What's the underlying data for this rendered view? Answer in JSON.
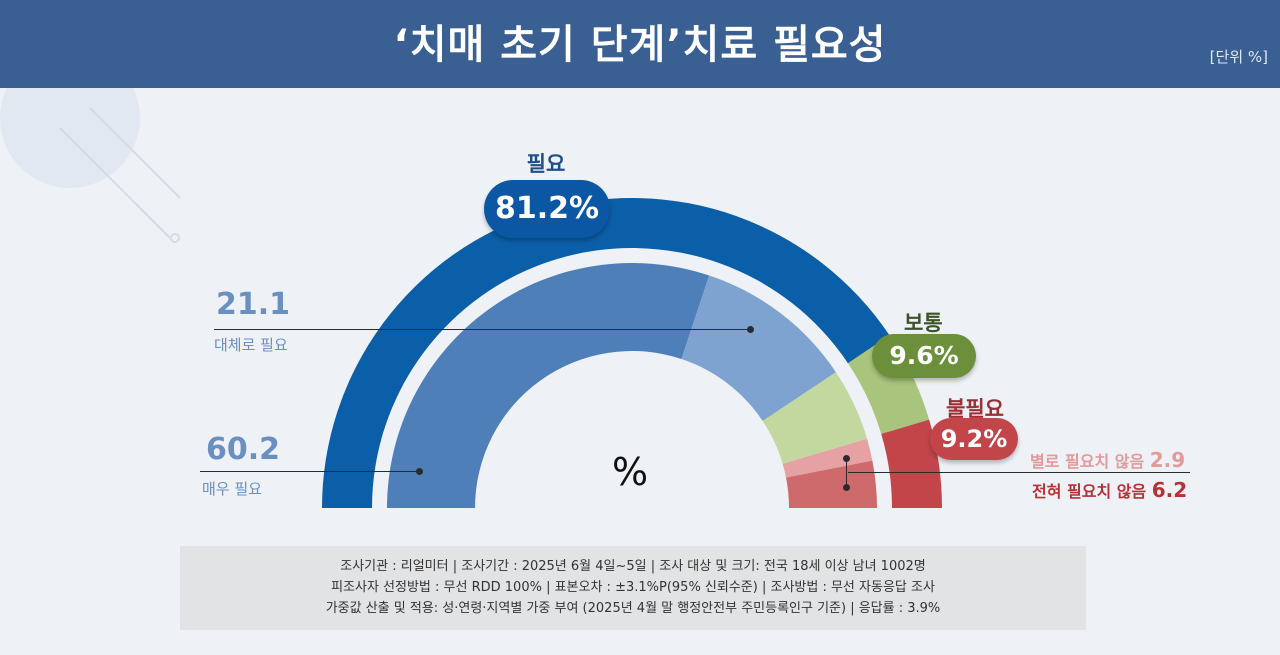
{
  "header": {
    "title": "‘치매 초기 단계’치료 필요성",
    "unit": "[단위 %]"
  },
  "colors": {
    "header_bg": "#3a5f92",
    "need_outer": "#0b5fa8",
    "need_very": "#4f7fb8",
    "need_somewhat": "#7fa3d1",
    "neutral": "#c3d89f",
    "neutral_outer": "#a9c47c",
    "notneed_little": "#e6a1a4",
    "notneed_none": "#cf6a6c",
    "notneed_outer": "#c2454a"
  },
  "chart_data": {
    "type": "donut",
    "unit_symbol": "%",
    "groups": [
      {
        "name": "필요",
        "value": 81.2,
        "value_label": "81.2%"
      },
      {
        "name": "보통",
        "value": 9.6,
        "value_label": "9.6%"
      },
      {
        "name": "불필요",
        "value": 9.2,
        "value_label": "9.2%"
      }
    ],
    "inner": [
      {
        "name": "매우 필요",
        "value": 60.2,
        "value_label": "60.2"
      },
      {
        "name": "대체로 필요",
        "value": 21.1,
        "value_label": "21.1"
      },
      {
        "name": "보통",
        "value": 9.6
      },
      {
        "name": "별로 필요치 않음",
        "value": 2.9,
        "value_label": "2.9"
      },
      {
        "name": "전혀 필요치 않음",
        "value": 6.2,
        "value_label": "6.2"
      }
    ]
  },
  "footer": {
    "line1": "조사기관 : 리얼미터  |  조사기간 : 2025년 6월 4일~5일 | 조사 대상 및 크기: 전국 18세 이상 남녀 1002명",
    "line2": "피조사자 선정방법 : 무선 RDD 100% | 표본오차 : ±3.1%P(95%  신뢰수준) | 조사방법 : 무선 자동응답 조사",
    "line3": "가중값 산출 및 적용: 성·연령·지역별  가중 부여 (2025년 4월 말 행정안전부  주민등록인구  기준) | 응답률 : 3.9%"
  }
}
